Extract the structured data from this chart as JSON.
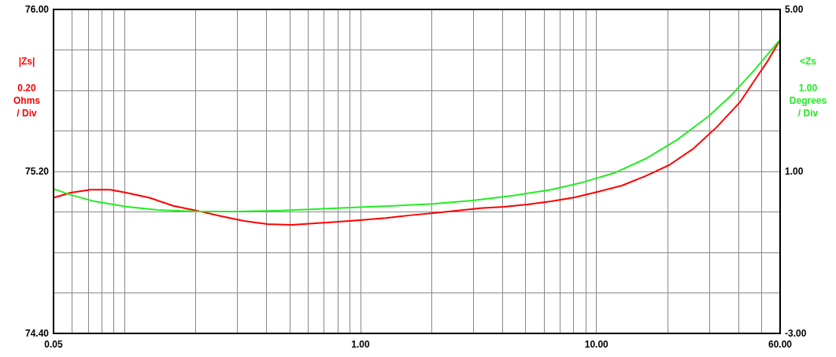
{
  "chart_data": {
    "type": "line",
    "annotations": [
      "0.20\nOhms\n/ Div",
      "1.00\nDegrees\n/ Div"
    ],
    "xlim": [
      0.05,
      60
    ],
    "xticks": [
      {
        "value": 0.05,
        "label": "0.05"
      },
      {
        "value": 0.06,
        "label": null
      },
      {
        "value": 0.07,
        "label": null
      },
      {
        "value": 0.08,
        "label": null
      },
      {
        "value": 0.09,
        "label": null
      },
      {
        "value": 0.1,
        "label": null
      },
      {
        "value": 0.2,
        "label": null
      },
      {
        "value": 0.3,
        "label": null
      },
      {
        "value": 0.4,
        "label": null
      },
      {
        "value": 0.5,
        "label": null
      },
      {
        "value": 0.6,
        "label": null
      },
      {
        "value": 0.7,
        "label": null
      },
      {
        "value": 0.8,
        "label": null
      },
      {
        "value": 0.9,
        "label": null
      },
      {
        "value": 1,
        "label": "1.00"
      },
      {
        "value": 2,
        "label": null
      },
      {
        "value": 3,
        "label": null
      },
      {
        "value": 4,
        "label": null
      },
      {
        "value": 5,
        "label": null
      },
      {
        "value": 6,
        "label": null
      },
      {
        "value": 7,
        "label": null
      },
      {
        "value": 8,
        "label": null
      },
      {
        "value": 9,
        "label": null
      },
      {
        "value": 10,
        "label": "10.00"
      },
      {
        "value": 20,
        "label": null
      },
      {
        "value": 30,
        "label": null
      },
      {
        "value": 40,
        "label": null
      },
      {
        "value": 50,
        "label": null
      },
      {
        "value": 60,
        "label": "60.00"
      }
    ],
    "log": "x",
    "ylim": [
      74.4,
      76
    ],
    "yticks": [
      {
        "value": 74.4,
        "label": "74.40"
      },
      {
        "value": 74.6,
        "label": null
      },
      {
        "value": 74.8,
        "label": null
      },
      {
        "value": 75,
        "label": null
      },
      {
        "value": 75.2,
        "label": "75.20"
      },
      {
        "value": 75.4,
        "label": null
      },
      {
        "value": 75.6,
        "label": null
      },
      {
        "value": 75.8,
        "label": null
      },
      {
        "value": 76,
        "label": "76.00"
      }
    ],
    "y2lim": [
      -3,
      5
    ],
    "y2ticks": [
      {
        "value": -3,
        "label": "-3.00"
      },
      {
        "value": 1,
        "label": "1.00"
      },
      {
        "value": 5,
        "label": "5.00"
      }
    ],
    "grid": true,
    "legend": false,
    "marker": "none",
    "line_style": "solid",
    "series": [
      {
        "name": "|Zs|",
        "color": "#ff0000",
        "x": [
          0.05,
          0.0592,
          0.0717,
          0.087,
          0.1014,
          0.1276,
          0.1608,
          0.2024,
          0.2549,
          0.3209,
          0.4041,
          0.5088,
          0.6407,
          0.8066,
          1.016,
          1.279,
          1.61,
          2.028,
          2.554,
          3.216,
          4.049,
          5.097,
          6.418,
          8.081,
          10.18,
          12.81,
          16.13,
          20.31,
          25.58,
          32.21,
          40.55,
          47.3,
          53.07,
          60
        ],
        "values": [
          75.07,
          75.095,
          75.11,
          75.11,
          75.095,
          75.07,
          75.03,
          75.006,
          74.98,
          74.955,
          74.94,
          74.936,
          74.944,
          74.951,
          74.96,
          74.97,
          74.983,
          74.994,
          75.006,
          75.018,
          75.025,
          75.037,
          75.052,
          75.072,
          75.1,
          75.13,
          75.177,
          75.231,
          75.31,
          75.417,
          75.542,
          75.658,
          75.744,
          75.85
        ]
      },
      {
        "name": "<Zs",
        "color": "#22ee22",
        "axis": "y2",
        "x": [
          0.05,
          0.0592,
          0.0746,
          0.1014,
          0.1378,
          0.2024,
          0.2972,
          0.4363,
          0.6407,
          0.9406,
          1.381,
          2.028,
          2.978,
          4.371,
          6.418,
          8.728,
          11.87,
          16.13,
          21.94,
          29.83,
          37.55,
          47.3,
          60
        ],
        "values": [
          0.57,
          0.42,
          0.26,
          0.13,
          0.05,
          0.01,
          0.01,
          0.03,
          0.07,
          0.11,
          0.15,
          0.2,
          0.28,
          0.4,
          0.55,
          0.73,
          0.96,
          1.31,
          1.78,
          2.36,
          2.9,
          3.54,
          4.26
        ]
      }
    ]
  }
}
